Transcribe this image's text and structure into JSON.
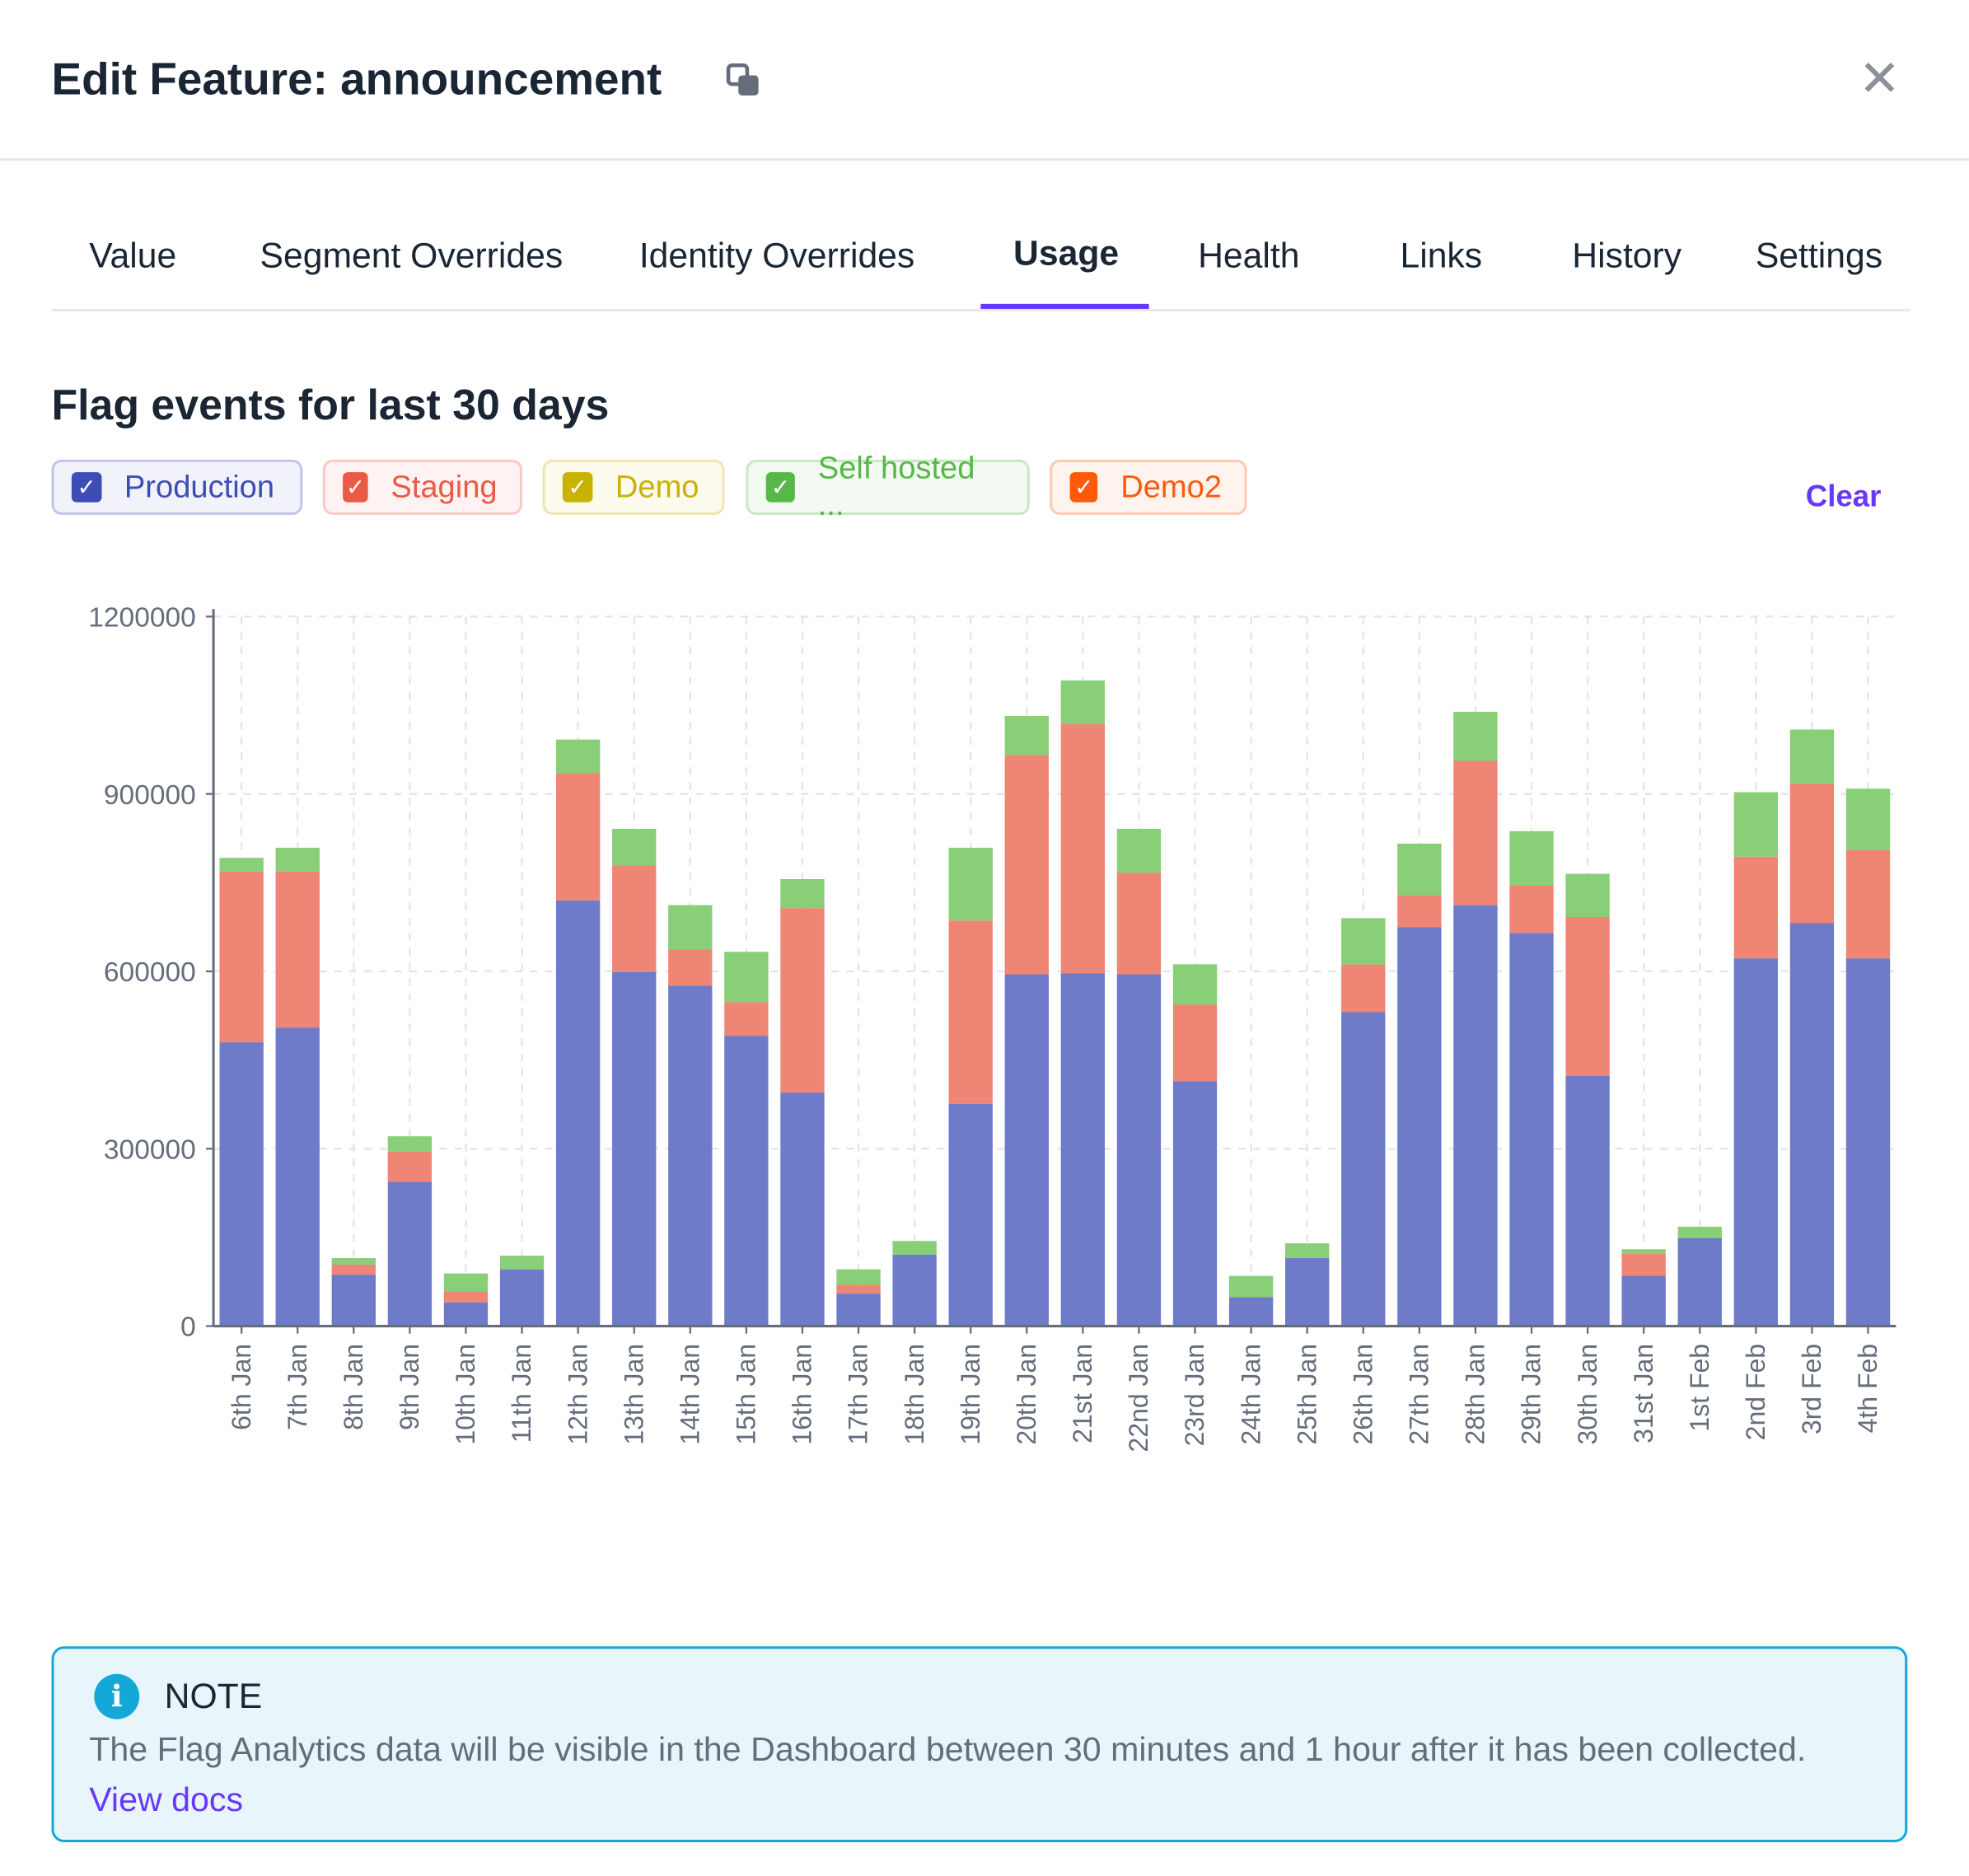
{
  "header": {
    "title": "Edit Feature: announcement"
  },
  "tabs": [
    {
      "label": "Value"
    },
    {
      "label": "Segment Overrides"
    },
    {
      "label": "Identity Overrides"
    },
    {
      "label": "Usage",
      "active": true
    },
    {
      "label": "Health"
    },
    {
      "label": "Links"
    },
    {
      "label": "History"
    },
    {
      "label": "Settings"
    }
  ],
  "usage": {
    "title": "Flag events for last 30 days",
    "clear_label": "Clear",
    "filters": [
      {
        "label": "Production",
        "checked": true,
        "color": "#3d4db6"
      },
      {
        "label": "Staging",
        "checked": true,
        "color": "#ea5a45"
      },
      {
        "label": "Demo",
        "checked": true,
        "color": "#c9b200"
      },
      {
        "label": "Self hosted ...",
        "checked": true,
        "color": "#56b847"
      },
      {
        "label": "Demo2",
        "checked": true,
        "color": "#ff5a0a"
      }
    ]
  },
  "chart_data": {
    "type": "bar",
    "stacked": true,
    "grid": true,
    "ylim": [
      0,
      1200000
    ],
    "yticks": [
      "0",
      "300000",
      "600000",
      "900000",
      "1200000"
    ],
    "categories": [
      "6th Jan",
      "7th Jan",
      "8th Jan",
      "9th Jan",
      "10th Jan",
      "11th Jan",
      "12th Jan",
      "13th Jan",
      "14th Jan",
      "15th Jan",
      "16th Jan",
      "17th Jan",
      "18th Jan",
      "19th Jan",
      "20th Jan",
      "21st Jan",
      "22nd Jan",
      "23rd Jan",
      "24th Jan",
      "25th Jan",
      "26th Jan",
      "27th Jan",
      "28th Jan",
      "29th Jan",
      "30th Jan",
      "31st Jan",
      "1st Feb",
      "2nd Feb",
      "3rd Feb",
      "4th Feb"
    ],
    "series": [
      {
        "name": "Production",
        "color": "#6e7bc9",
        "values": [
          480000,
          505000,
          87000,
          244000,
          40000,
          96000,
          720000,
          599000,
          576000,
          491000,
          395000,
          55000,
          121000,
          376000,
          595000,
          597000,
          595000,
          414000,
          49000,
          115000,
          531000,
          675000,
          712000,
          665000,
          423000,
          85000,
          149000,
          622000,
          682000,
          622000
        ]
      },
      {
        "name": "Staging",
        "color": "#ef8574",
        "values": [
          289000,
          264000,
          17000,
          51000,
          19000,
          0,
          215000,
          180000,
          61000,
          57000,
          312000,
          15000,
          0,
          310000,
          371000,
          422000,
          172000,
          130000,
          0,
          0,
          81000,
          54000,
          244000,
          81000,
          269000,
          38000,
          0,
          172000,
          236000,
          183000
        ]
      },
      {
        "name": "Self hosted ...",
        "color": "#88cf77",
        "values": [
          23000,
          40000,
          11000,
          26000,
          30000,
          23000,
          57000,
          62000,
          75000,
          85000,
          49000,
          26000,
          23000,
          123000,
          66000,
          73000,
          74000,
          68000,
          36000,
          25000,
          78000,
          87000,
          83000,
          91000,
          73000,
          7000,
          19000,
          109000,
          91000,
          104000
        ]
      }
    ]
  },
  "note": {
    "title": "NOTE",
    "body": "The Flag Analytics data will be visible in the Dashboard between 30 minutes and 1 hour after it has been collected.",
    "link": "View docs"
  }
}
